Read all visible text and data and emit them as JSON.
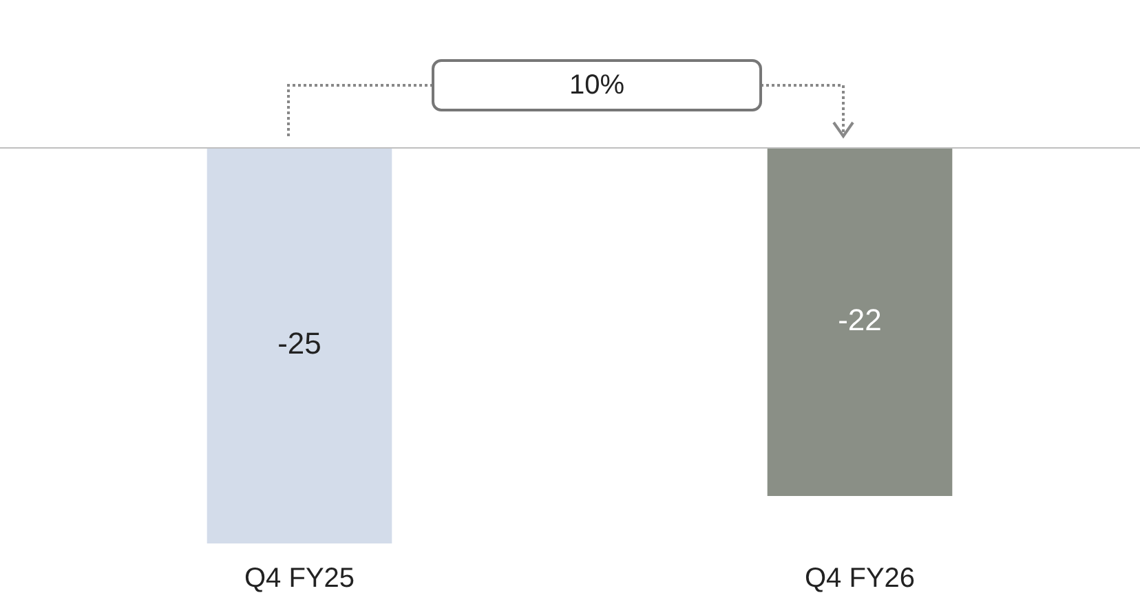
{
  "chart_data": {
    "type": "bar",
    "categories": [
      "Q4 FY25",
      "Q4 FY26"
    ],
    "values": [
      -25,
      -22
    ],
    "colors": [
      "#d3dcea",
      "#8a8f86"
    ],
    "ylim": [
      -25,
      0
    ],
    "data_labels": true,
    "annotations": [
      "10%"
    ],
    "legend": false
  }
}
